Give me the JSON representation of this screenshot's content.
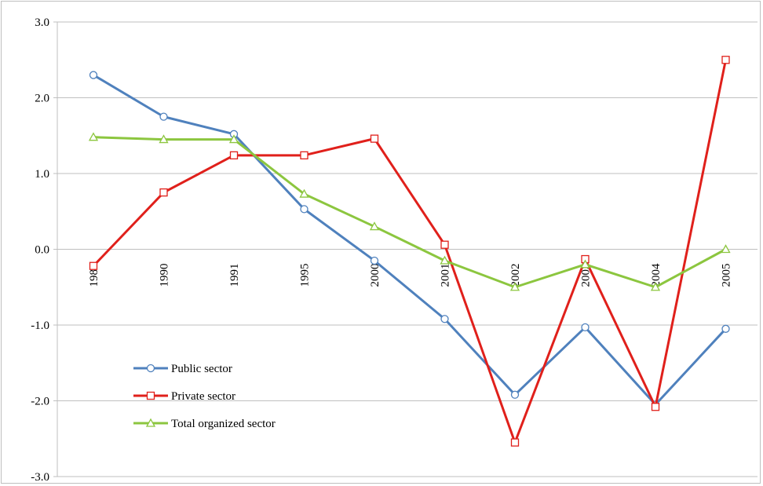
{
  "chart_data": {
    "type": "line",
    "title": "",
    "xlabel": "",
    "ylabel": "",
    "categories": [
      "1985",
      "1990",
      "1991",
      "1995",
      "2000",
      "2001",
      "2002",
      "2003",
      "2004",
      "2005"
    ],
    "ylim": [
      -3.0,
      3.0
    ],
    "yticks": [
      "3.0",
      "2.0",
      "1.0",
      "0.0",
      "-1.0",
      "-2.0",
      "-3.0"
    ],
    "grid": true,
    "legend_position": "bottom-left",
    "series": [
      {
        "name": "Public sector",
        "color": "#4f81bd",
        "marker": "circle",
        "values": [
          2.3,
          1.75,
          1.52,
          0.53,
          -0.15,
          -0.92,
          -1.92,
          -1.03,
          -2.05,
          -1.05
        ]
      },
      {
        "name": "Private sector",
        "color": "#e0201b",
        "marker": "square",
        "values": [
          -0.22,
          0.75,
          1.24,
          1.24,
          1.46,
          0.06,
          -2.55,
          -0.13,
          -2.08,
          2.5
        ]
      },
      {
        "name": "Total organized sector",
        "color": "#8cc63f",
        "marker": "triangle",
        "values": [
          1.48,
          1.45,
          1.45,
          0.73,
          0.3,
          -0.15,
          -0.5,
          -0.2,
          -0.5,
          0.0
        ]
      }
    ]
  }
}
